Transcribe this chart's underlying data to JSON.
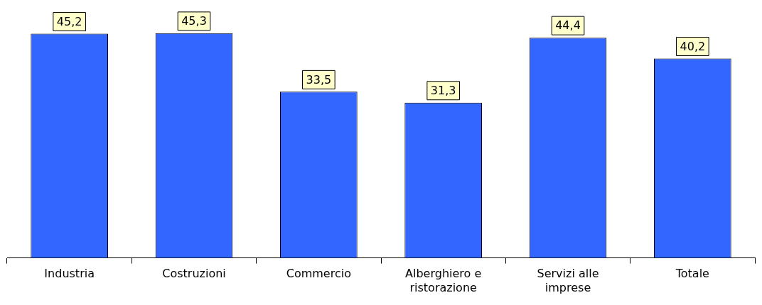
{
  "chart_data": {
    "type": "bar",
    "categories": [
      "Industria",
      "Costruzioni",
      "Commercio",
      "Alberghiero e ristorazione",
      "Servizi alle imprese",
      "Totale"
    ],
    "values": [
      45.2,
      45.3,
      33.5,
      31.3,
      44.4,
      40.2
    ],
    "value_labels": [
      "45,2",
      "45,3",
      "33,5",
      "31,3",
      "44,4",
      "40,2"
    ],
    "color": "#3366ff",
    "grid": false,
    "legend": false
  }
}
